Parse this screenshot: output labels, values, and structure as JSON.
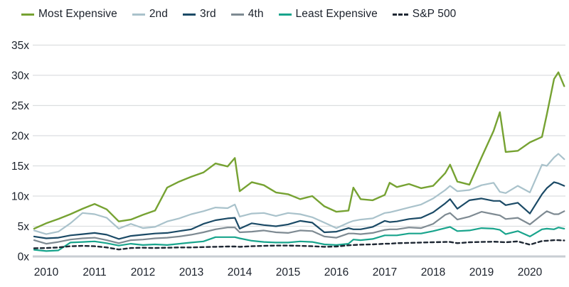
{
  "colors": {
    "background": "#ffffff",
    "text": "#1b212b",
    "gridline": "#dcdee0",
    "baseline": "#c9ced3"
  },
  "legend": {
    "items": [
      {
        "label": "Most Expensive",
        "color": "#76a232",
        "dashed": false
      },
      {
        "label": "2nd",
        "color": "#a9c2cb",
        "dashed": false
      },
      {
        "label": "3rd",
        "color": "#1b4a66",
        "dashed": false
      },
      {
        "label": "4th",
        "color": "#7e8a92",
        "dashed": false
      },
      {
        "label": "Least Expensive",
        "color": "#18a48c",
        "dashed": false
      },
      {
        "label": "S&P 500",
        "color": "#1e2733",
        "dashed": true
      }
    ]
  },
  "chart_data": {
    "type": "line",
    "title": "",
    "xlabel": "",
    "ylabel": "",
    "grid": "horizontal",
    "legend_position": "top-left",
    "ylim": [
      0,
      35
    ],
    "xlim": [
      2010.0,
      2020.96
    ],
    "y_ticks": [
      {
        "value": 0,
        "label": "0x"
      },
      {
        "value": 5,
        "label": "5x"
      },
      {
        "value": 10,
        "label": "10x"
      },
      {
        "value": 15,
        "label": "15x"
      },
      {
        "value": 20,
        "label": "20x"
      },
      {
        "value": 25,
        "label": "25x"
      },
      {
        "value": 30,
        "label": "30x"
      },
      {
        "value": 35,
        "label": "35x"
      }
    ],
    "x_ticks": [
      2010,
      2011,
      2012,
      2013,
      2014,
      2015,
      2016,
      2017,
      2018,
      2019,
      2020
    ],
    "x": [
      2010.0,
      2010.25,
      2010.5,
      2010.75,
      2011.0,
      2011.25,
      2011.5,
      2011.75,
      2012.0,
      2012.25,
      2012.5,
      2012.75,
      2013.0,
      2013.25,
      2013.5,
      2013.75,
      2014.0,
      2014.15,
      2014.25,
      2014.5,
      2014.75,
      2015.0,
      2015.25,
      2015.5,
      2015.75,
      2016.0,
      2016.25,
      2016.5,
      2016.6,
      2016.75,
      2017.0,
      2017.25,
      2017.35,
      2017.5,
      2017.75,
      2018.0,
      2018.25,
      2018.5,
      2018.6,
      2018.75,
      2019.0,
      2019.25,
      2019.5,
      2019.63,
      2019.75,
      2020.0,
      2020.25,
      2020.5,
      2020.6,
      2020.75,
      2020.84,
      2020.96
    ],
    "series": [
      {
        "name": "Most Expensive",
        "color": "#76a232",
        "dashed": false,
        "width": 2.4,
        "values": [
          4.6,
          5.5,
          6.2,
          7.0,
          7.9,
          8.7,
          7.8,
          5.8,
          6.1,
          6.9,
          7.6,
          11.4,
          12.4,
          13.2,
          13.9,
          15.4,
          14.9,
          16.3,
          10.8,
          12.3,
          11.8,
          10.6,
          10.3,
          9.5,
          10.0,
          8.3,
          7.4,
          7.6,
          11.4,
          9.5,
          9.3,
          10.2,
          12.2,
          11.5,
          12.0,
          11.3,
          11.7,
          13.8,
          15.2,
          12.4,
          11.9,
          16.4,
          20.8,
          23.9,
          17.3,
          17.5,
          18.9,
          19.8,
          23.5,
          29.4,
          30.5,
          28.2
        ]
      },
      {
        "name": "2nd",
        "color": "#a9c2cb",
        "dashed": false,
        "width": 2.2,
        "values": [
          4.3,
          3.7,
          4.1,
          5.5,
          7.2,
          7.0,
          6.4,
          4.6,
          5.4,
          4.7,
          4.9,
          5.8,
          6.3,
          7.0,
          7.5,
          8.1,
          8.0,
          8.6,
          6.6,
          7.1,
          7.2,
          6.7,
          7.2,
          7.0,
          6.5,
          5.6,
          4.7,
          5.6,
          5.9,
          6.1,
          6.3,
          7.2,
          7.3,
          7.6,
          8.1,
          8.6,
          9.6,
          11.0,
          11.7,
          10.8,
          11.0,
          11.8,
          12.2,
          10.7,
          10.5,
          11.7,
          10.6,
          15.2,
          15.0,
          16.4,
          17.0,
          16.1
        ]
      },
      {
        "name": "3rd",
        "color": "#1b4a66",
        "dashed": false,
        "width": 2.2,
        "values": [
          3.3,
          3.0,
          3.1,
          3.5,
          3.7,
          3.9,
          3.6,
          2.9,
          3.4,
          3.6,
          3.8,
          3.9,
          4.2,
          4.5,
          5.4,
          6.0,
          6.3,
          6.4,
          4.6,
          5.5,
          5.2,
          5.0,
          5.3,
          5.9,
          5.6,
          4.0,
          4.1,
          4.7,
          4.5,
          4.5,
          4.9,
          5.9,
          5.7,
          5.8,
          6.2,
          6.4,
          7.3,
          8.8,
          9.5,
          7.9,
          9.3,
          9.6,
          9.2,
          9.2,
          8.5,
          8.9,
          7.1,
          10.3,
          11.3,
          12.3,
          12.1,
          11.7
        ]
      },
      {
        "name": "4th",
        "color": "#7e8a92",
        "dashed": false,
        "width": 2.2,
        "values": [
          2.7,
          2.1,
          2.4,
          2.8,
          3.0,
          3.1,
          2.7,
          2.2,
          2.7,
          2.8,
          3.0,
          3.1,
          3.3,
          3.6,
          4.0,
          4.5,
          4.8,
          4.8,
          4.0,
          4.1,
          4.3,
          4.0,
          3.9,
          4.3,
          4.2,
          3.3,
          3.1,
          3.8,
          3.8,
          3.7,
          3.9,
          4.4,
          4.5,
          4.5,
          4.8,
          4.7,
          5.4,
          6.9,
          7.2,
          6.1,
          6.6,
          7.4,
          7.0,
          6.8,
          6.2,
          6.4,
          5.3,
          6.9,
          7.5,
          7.0,
          7.0,
          7.5
        ]
      },
      {
        "name": "Least Expensive",
        "color": "#18a48c",
        "dashed": false,
        "width": 2.2,
        "values": [
          1.1,
          0.9,
          1.0,
          2.3,
          2.4,
          2.5,
          2.2,
          1.8,
          2.1,
          1.9,
          2.0,
          1.9,
          2.1,
          2.3,
          2.5,
          3.2,
          3.2,
          3.2,
          3.0,
          2.6,
          2.4,
          2.3,
          2.3,
          2.5,
          2.4,
          2.0,
          1.9,
          2.1,
          2.8,
          2.7,
          2.9,
          3.5,
          3.5,
          3.5,
          3.8,
          3.8,
          4.2,
          4.7,
          4.9,
          4.2,
          4.3,
          4.7,
          4.6,
          4.4,
          3.7,
          4.2,
          3.3,
          4.5,
          4.6,
          4.5,
          4.8,
          4.6
        ]
      },
      {
        "name": "S&P 500",
        "color": "#1e2733",
        "dashed": true,
        "width": 2.4,
        "values": [
          1.35,
          1.4,
          1.5,
          1.7,
          1.75,
          1.7,
          1.5,
          1.15,
          1.4,
          1.45,
          1.4,
          1.45,
          1.5,
          1.5,
          1.55,
          1.6,
          1.65,
          1.65,
          1.6,
          1.7,
          1.75,
          1.8,
          1.8,
          1.75,
          1.7,
          1.6,
          1.65,
          1.85,
          1.9,
          1.95,
          2.0,
          2.1,
          2.1,
          2.2,
          2.25,
          2.3,
          2.35,
          2.4,
          2.4,
          2.2,
          2.35,
          2.4,
          2.45,
          2.4,
          2.35,
          2.5,
          1.95,
          2.55,
          2.6,
          2.7,
          2.7,
          2.65
        ]
      }
    ]
  }
}
